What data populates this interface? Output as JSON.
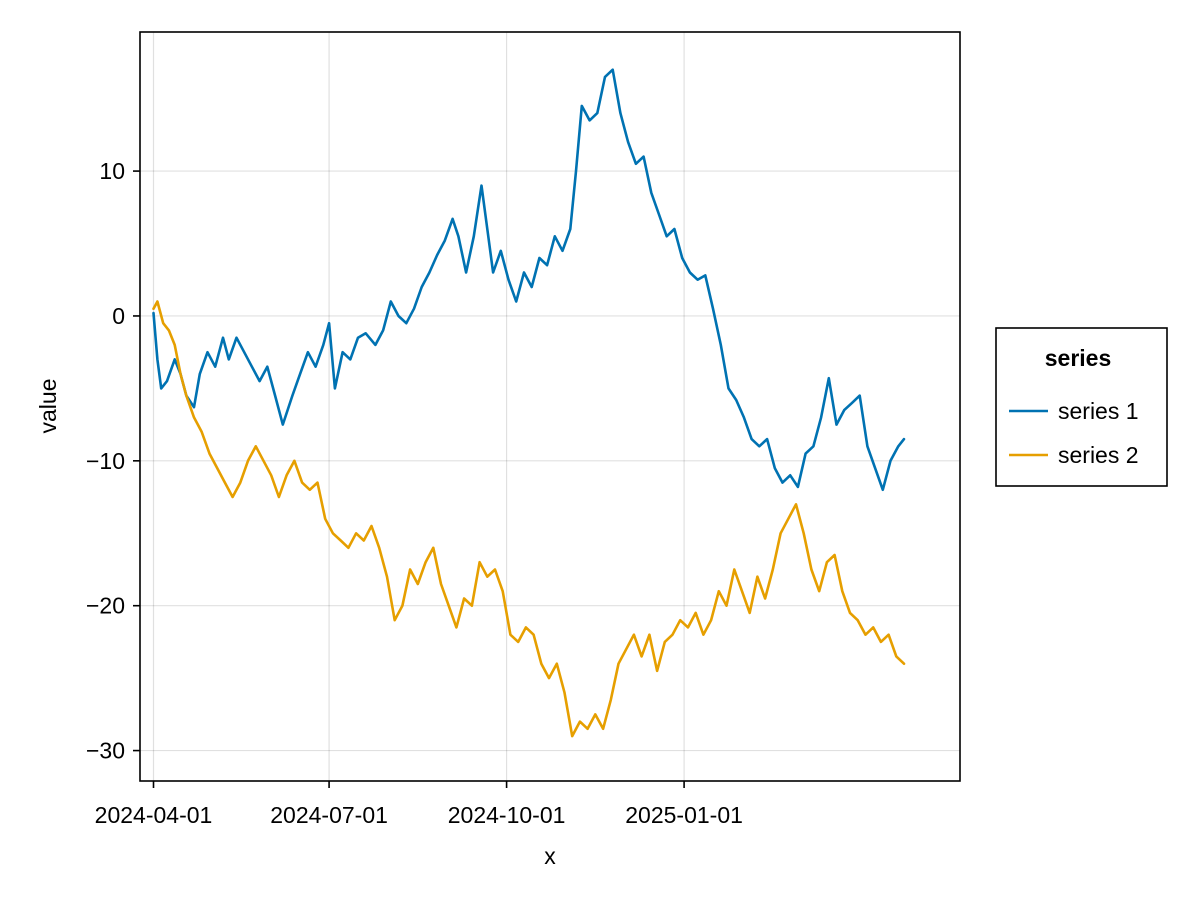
{
  "chart_data": {
    "type": "line",
    "xlabel": "x",
    "ylabel": "value",
    "xlim": [
      "2024-03-25",
      "2025-05-24"
    ],
    "ylim": [
      -32.1,
      19.6
    ],
    "x_ticks": [
      "2024-04-01",
      "2024-07-01",
      "2024-10-01",
      "2025-01-01"
    ],
    "y_ticks": [
      -30,
      -20,
      -10,
      0,
      10
    ],
    "y_tick_labels": [
      "−30",
      "−20",
      "−10",
      "0",
      "10"
    ],
    "grid": true,
    "legend": {
      "title": "series",
      "position": "right"
    },
    "series": [
      {
        "name": "series 1",
        "color": "#0072b2",
        "points": [
          [
            "2024-04-01",
            0.2
          ],
          [
            "2024-04-03",
            -3.0
          ],
          [
            "2024-04-05",
            -5.0
          ],
          [
            "2024-04-08",
            -4.5
          ],
          [
            "2024-04-12",
            -3.0
          ],
          [
            "2024-04-15",
            -4.0
          ],
          [
            "2024-04-18",
            -5.5
          ],
          [
            "2024-04-22",
            -6.3
          ],
          [
            "2024-04-25",
            -4.0
          ],
          [
            "2024-04-29",
            -2.5
          ],
          [
            "2024-05-03",
            -3.5
          ],
          [
            "2024-05-07",
            -1.5
          ],
          [
            "2024-05-10",
            -3.0
          ],
          [
            "2024-05-14",
            -1.5
          ],
          [
            "2024-05-18",
            -2.5
          ],
          [
            "2024-05-22",
            -3.5
          ],
          [
            "2024-05-26",
            -4.5
          ],
          [
            "2024-05-30",
            -3.5
          ],
          [
            "2024-06-03",
            -5.5
          ],
          [
            "2024-06-07",
            -7.5
          ],
          [
            "2024-06-12",
            -5.5
          ],
          [
            "2024-06-16",
            -4.0
          ],
          [
            "2024-06-20",
            -2.5
          ],
          [
            "2024-06-24",
            -3.5
          ],
          [
            "2024-06-28",
            -2.0
          ],
          [
            "2024-07-01",
            -0.5
          ],
          [
            "2024-07-04",
            -5.0
          ],
          [
            "2024-07-08",
            -2.5
          ],
          [
            "2024-07-12",
            -3.0
          ],
          [
            "2024-07-16",
            -1.5
          ],
          [
            "2024-07-20",
            -1.2
          ],
          [
            "2024-07-25",
            -2.0
          ],
          [
            "2024-07-29",
            -1.0
          ],
          [
            "2024-08-02",
            1.0
          ],
          [
            "2024-08-06",
            0.0
          ],
          [
            "2024-08-10",
            -0.5
          ],
          [
            "2024-08-14",
            0.5
          ],
          [
            "2024-08-18",
            2.0
          ],
          [
            "2024-08-22",
            3.0
          ],
          [
            "2024-08-26",
            4.2
          ],
          [
            "2024-08-30",
            5.2
          ],
          [
            "2024-09-03",
            6.7
          ],
          [
            "2024-09-06",
            5.5
          ],
          [
            "2024-09-10",
            3.0
          ],
          [
            "2024-09-14",
            5.5
          ],
          [
            "2024-09-18",
            9.0
          ],
          [
            "2024-09-21",
            6.0
          ],
          [
            "2024-09-24",
            3.0
          ],
          [
            "2024-09-28",
            4.5
          ],
          [
            "2024-10-02",
            2.5
          ],
          [
            "2024-10-06",
            1.0
          ],
          [
            "2024-10-10",
            3.0
          ],
          [
            "2024-10-14",
            2.0
          ],
          [
            "2024-10-18",
            4.0
          ],
          [
            "2024-10-22",
            3.5
          ],
          [
            "2024-10-26",
            5.5
          ],
          [
            "2024-10-30",
            4.5
          ],
          [
            "2024-11-03",
            6.0
          ],
          [
            "2024-11-06",
            10.0
          ],
          [
            "2024-11-09",
            14.5
          ],
          [
            "2024-11-13",
            13.5
          ],
          [
            "2024-11-17",
            14.0
          ],
          [
            "2024-11-21",
            16.5
          ],
          [
            "2024-11-25",
            17.0
          ],
          [
            "2024-11-29",
            14.0
          ],
          [
            "2024-12-03",
            12.0
          ],
          [
            "2024-12-07",
            10.5
          ],
          [
            "2024-12-11",
            11.0
          ],
          [
            "2024-12-15",
            8.5
          ],
          [
            "2024-12-19",
            7.0
          ],
          [
            "2024-12-23",
            5.5
          ],
          [
            "2024-12-27",
            6.0
          ],
          [
            "2024-12-31",
            4.0
          ],
          [
            "2025-01-04",
            3.0
          ],
          [
            "2025-01-08",
            2.5
          ],
          [
            "2025-01-12",
            2.8
          ],
          [
            "2025-01-16",
            0.5
          ],
          [
            "2025-01-20",
            -2.0
          ],
          [
            "2025-01-24",
            -5.0
          ],
          [
            "2025-01-28",
            -5.8
          ],
          [
            "2025-02-01",
            -7.0
          ],
          [
            "2025-02-05",
            -8.5
          ],
          [
            "2025-02-09",
            -9.0
          ],
          [
            "2025-02-13",
            -8.5
          ],
          [
            "2025-02-17",
            -10.5
          ],
          [
            "2025-02-21",
            -11.5
          ],
          [
            "2025-02-25",
            -11.0
          ],
          [
            "2025-03-01",
            -11.8
          ],
          [
            "2025-03-05",
            -9.5
          ],
          [
            "2025-03-09",
            -9.0
          ],
          [
            "2025-03-13",
            -7.0
          ],
          [
            "2025-03-17",
            -4.3
          ],
          [
            "2025-03-21",
            -7.5
          ],
          [
            "2025-03-25",
            -6.5
          ],
          [
            "2025-03-29",
            -6.0
          ],
          [
            "2025-04-02",
            -5.5
          ],
          [
            "2025-04-06",
            -9.0
          ],
          [
            "2025-04-10",
            -10.5
          ],
          [
            "2025-04-14",
            -12.0
          ],
          [
            "2025-04-18",
            -10.0
          ],
          [
            "2025-04-22",
            -9.0
          ],
          [
            "2025-04-25",
            -8.5
          ]
        ]
      },
      {
        "name": "series 2",
        "color": "#e69f00",
        "points": [
          [
            "2024-04-01",
            0.5
          ],
          [
            "2024-04-03",
            1.0
          ],
          [
            "2024-04-06",
            -0.5
          ],
          [
            "2024-04-09",
            -1.0
          ],
          [
            "2024-04-12",
            -2.0
          ],
          [
            "2024-04-15",
            -4.0
          ],
          [
            "2024-04-18",
            -5.5
          ],
          [
            "2024-04-22",
            -7.0
          ],
          [
            "2024-04-26",
            -8.0
          ],
          [
            "2024-04-30",
            -9.5
          ],
          [
            "2024-05-04",
            -10.5
          ],
          [
            "2024-05-08",
            -11.5
          ],
          [
            "2024-05-12",
            -12.5
          ],
          [
            "2024-05-16",
            -11.5
          ],
          [
            "2024-05-20",
            -10.0
          ],
          [
            "2024-05-24",
            -9.0
          ],
          [
            "2024-05-28",
            -10.0
          ],
          [
            "2024-06-01",
            -11.0
          ],
          [
            "2024-06-05",
            -12.5
          ],
          [
            "2024-06-09",
            -11.0
          ],
          [
            "2024-06-13",
            -10.0
          ],
          [
            "2024-06-17",
            -11.5
          ],
          [
            "2024-06-21",
            -12.0
          ],
          [
            "2024-06-25",
            -11.5
          ],
          [
            "2024-06-29",
            -14.0
          ],
          [
            "2024-07-03",
            -15.0
          ],
          [
            "2024-07-07",
            -15.5
          ],
          [
            "2024-07-11",
            -16.0
          ],
          [
            "2024-07-15",
            -15.0
          ],
          [
            "2024-07-19",
            -15.5
          ],
          [
            "2024-07-23",
            -14.5
          ],
          [
            "2024-07-27",
            -16.0
          ],
          [
            "2024-07-31",
            -18.0
          ],
          [
            "2024-08-04",
            -21.0
          ],
          [
            "2024-08-08",
            -20.0
          ],
          [
            "2024-08-12",
            -17.5
          ],
          [
            "2024-08-16",
            -18.5
          ],
          [
            "2024-08-20",
            -17.0
          ],
          [
            "2024-08-24",
            -16.0
          ],
          [
            "2024-08-28",
            -18.5
          ],
          [
            "2024-09-01",
            -20.0
          ],
          [
            "2024-09-05",
            -21.5
          ],
          [
            "2024-09-09",
            -19.5
          ],
          [
            "2024-09-13",
            -20.0
          ],
          [
            "2024-09-17",
            -17.0
          ],
          [
            "2024-09-21",
            -18.0
          ],
          [
            "2024-09-25",
            -17.5
          ],
          [
            "2024-09-29",
            -19.0
          ],
          [
            "2024-10-03",
            -22.0
          ],
          [
            "2024-10-07",
            -22.5
          ],
          [
            "2024-10-11",
            -21.5
          ],
          [
            "2024-10-15",
            -22.0
          ],
          [
            "2024-10-19",
            -24.0
          ],
          [
            "2024-10-23",
            -25.0
          ],
          [
            "2024-10-27",
            -24.0
          ],
          [
            "2024-10-31",
            -26.0
          ],
          [
            "2024-11-04",
            -29.0
          ],
          [
            "2024-11-08",
            -28.0
          ],
          [
            "2024-11-12",
            -28.5
          ],
          [
            "2024-11-16",
            -27.5
          ],
          [
            "2024-11-20",
            -28.5
          ],
          [
            "2024-11-24",
            -26.5
          ],
          [
            "2024-11-28",
            -24.0
          ],
          [
            "2024-12-02",
            -23.0
          ],
          [
            "2024-12-06",
            -22.0
          ],
          [
            "2024-12-10",
            -23.5
          ],
          [
            "2024-12-14",
            -22.0
          ],
          [
            "2024-12-18",
            -24.5
          ],
          [
            "2024-12-22",
            -22.5
          ],
          [
            "2024-12-26",
            -22.0
          ],
          [
            "2024-12-30",
            -21.0
          ],
          [
            "2025-01-03",
            -21.5
          ],
          [
            "2025-01-07",
            -20.5
          ],
          [
            "2025-01-11",
            -22.0
          ],
          [
            "2025-01-15",
            -21.0
          ],
          [
            "2025-01-19",
            -19.0
          ],
          [
            "2025-01-23",
            -20.0
          ],
          [
            "2025-01-27",
            -17.5
          ],
          [
            "2025-01-31",
            -19.0
          ],
          [
            "2025-02-04",
            -20.5
          ],
          [
            "2025-02-08",
            -18.0
          ],
          [
            "2025-02-12",
            -19.5
          ],
          [
            "2025-02-16",
            -17.5
          ],
          [
            "2025-02-20",
            -15.0
          ],
          [
            "2025-02-24",
            -14.0
          ],
          [
            "2025-02-28",
            -13.0
          ],
          [
            "2025-03-04",
            -15.0
          ],
          [
            "2025-03-08",
            -17.5
          ],
          [
            "2025-03-12",
            -19.0
          ],
          [
            "2025-03-16",
            -17.0
          ],
          [
            "2025-03-20",
            -16.5
          ],
          [
            "2025-03-24",
            -19.0
          ],
          [
            "2025-03-28",
            -20.5
          ],
          [
            "2025-04-01",
            -21.0
          ],
          [
            "2025-04-05",
            -22.0
          ],
          [
            "2025-04-09",
            -21.5
          ],
          [
            "2025-04-13",
            -22.5
          ],
          [
            "2025-04-17",
            -22.0
          ],
          [
            "2025-04-21",
            -23.5
          ],
          [
            "2025-04-25",
            -24.0
          ]
        ]
      }
    ]
  }
}
